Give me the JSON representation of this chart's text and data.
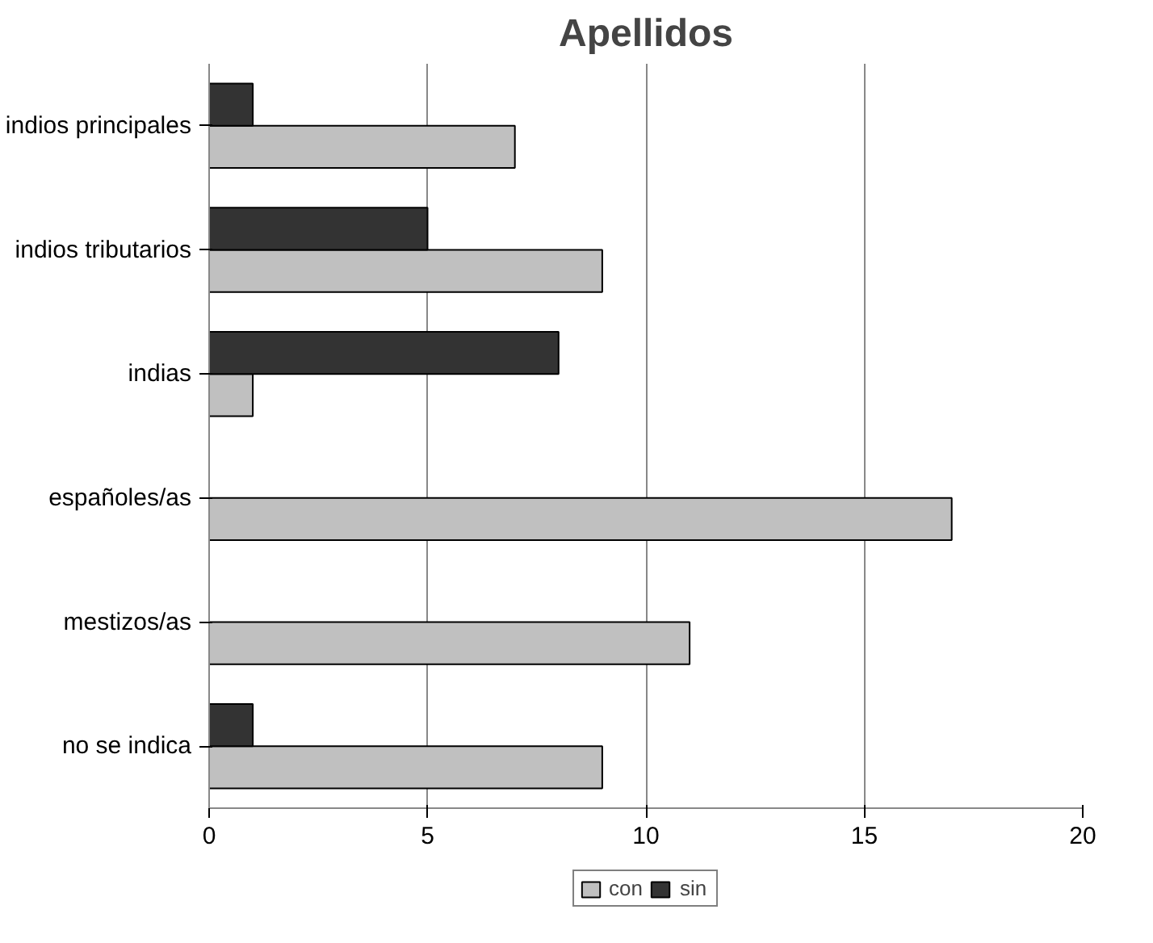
{
  "chart_data": {
    "type": "bar",
    "title": "Apellidos",
    "orientation": "horizontal",
    "categories": [
      "indios principales",
      "indios tributarios",
      "indias",
      "españoles/as",
      "mestizos/as",
      "no se indica"
    ],
    "series": [
      {
        "name": "con",
        "color": "#c0c0c0",
        "values": [
          7,
          9,
          1,
          17,
          11,
          9
        ]
      },
      {
        "name": "sin",
        "color": "#333333",
        "values": [
          1,
          5,
          8,
          null,
          null,
          1
        ]
      }
    ],
    "xlim": [
      0,
      20
    ],
    "xticks": [
      0,
      5,
      10,
      15,
      20
    ],
    "grid": "x",
    "legend": "bottom"
  }
}
